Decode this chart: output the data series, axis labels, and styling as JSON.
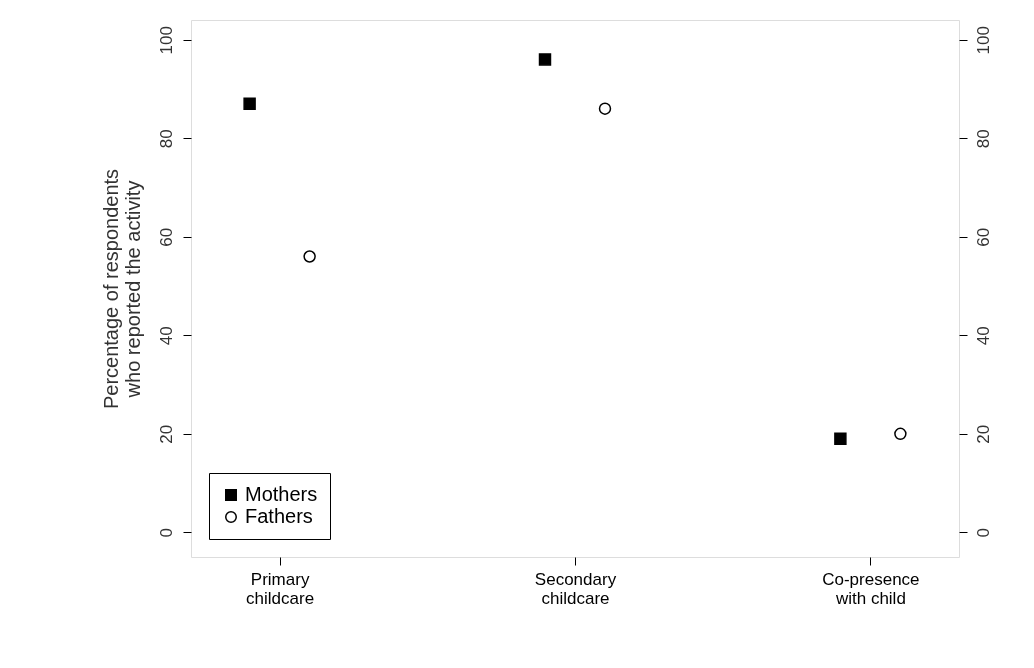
{
  "chart_data": {
    "type": "scatter",
    "ylabel": "Percentage of respondents\nwho reported the activity",
    "categories": [
      "Primary\nchildcare",
      "Secondary\nchildcare",
      "Co-presence\nwith child"
    ],
    "series": [
      {
        "name": "Mothers",
        "color": "#000000",
        "marker": "square",
        "values": [
          87,
          96,
          19
        ]
      },
      {
        "name": "Fathers",
        "color": "#000000",
        "marker": "circle",
        "values": [
          56,
          86,
          20
        ]
      }
    ],
    "ylim": [
      -5,
      104
    ],
    "yticks": [
      0,
      20,
      40,
      60,
      80,
      100
    ],
    "y2lim": [
      -5,
      104
    ],
    "y2ticks": [
      0,
      20,
      40,
      60,
      80,
      100
    ],
    "grid": false,
    "legend": "bottom left"
  }
}
